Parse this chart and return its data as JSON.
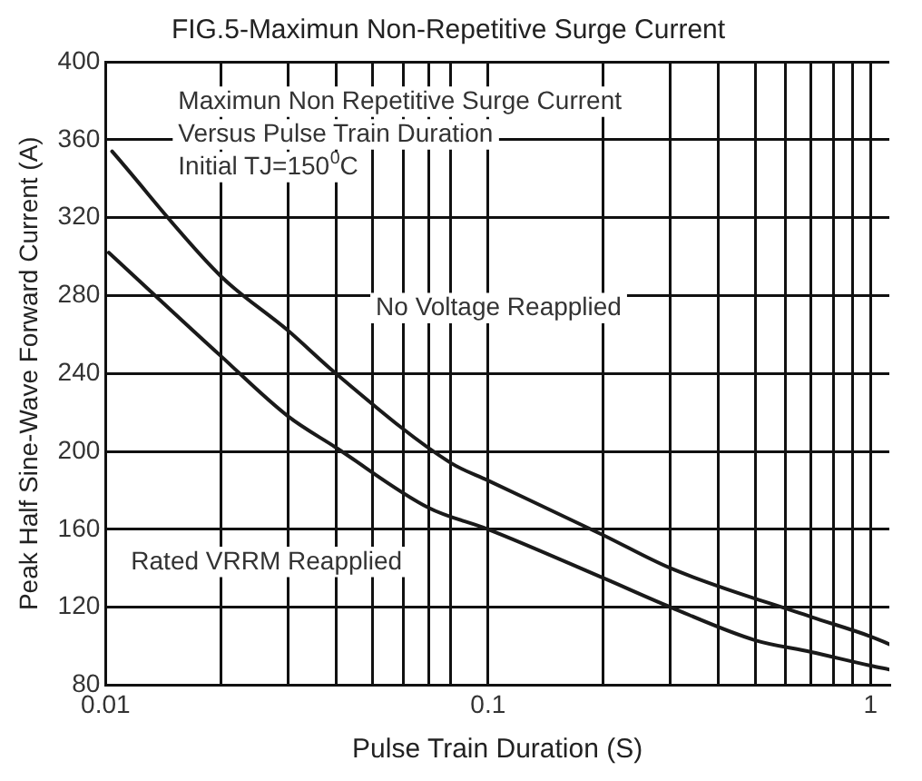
{
  "chart_data": {
    "type": "line",
    "title": "FIG.5-Maximun Non-Repetitive Surge Current",
    "xlabel": "Pulse Train Duration (S)",
    "ylabel": "Peak Half Sine-Wave Forward Current (A)",
    "log": "x",
    "grid": true,
    "legend": false,
    "marker": "none",
    "line_style": "solid",
    "xlim": [
      0.01,
      1.12
    ],
    "ylim": [
      80,
      400
    ],
    "xticks": [
      0.01,
      {
        "value": 0.02,
        "label": null
      },
      {
        "value": 0.03,
        "label": null
      },
      {
        "value": 0.04,
        "label": null
      },
      {
        "value": 0.05,
        "label": null
      },
      {
        "value": 0.06,
        "label": null
      },
      {
        "value": 0.07,
        "label": null
      },
      {
        "value": 0.08,
        "label": null
      },
      0.1,
      {
        "value": 0.2,
        "label": null
      },
      {
        "value": 0.3,
        "label": null
      },
      {
        "value": 0.4,
        "label": null
      },
      {
        "value": 0.5,
        "label": null
      },
      {
        "value": 0.6,
        "label": null
      },
      {
        "value": 0.7,
        "label": null
      },
      {
        "value": 0.8,
        "label": null
      },
      {
        "value": 0.9,
        "label": null
      },
      1
    ],
    "yticks": [
      80,
      120,
      160,
      200,
      240,
      280,
      320,
      360,
      400
    ],
    "series": [
      {
        "name": "No Voltage Reapplied",
        "color": "#1a1a1a",
        "x": [
          0.0104,
          0.02,
          0.03,
          0.04,
          0.08,
          0.1,
          0.2,
          0.3,
          0.7,
          1,
          1.12
        ],
        "values": [
          354,
          290,
          262,
          240,
          194,
          185,
          157,
          140,
          115,
          105,
          101
        ]
      },
      {
        "name": "Rated VRRM Reapplied",
        "color": "#1a1a1a",
        "x": [
          0.0102,
          0.02,
          0.03,
          0.04,
          0.07,
          0.1,
          0.2,
          0.3,
          0.5,
          0.7,
          1,
          1.12
        ],
        "values": [
          302,
          249,
          218,
          202,
          171,
          160,
          135,
          120,
          103,
          97,
          90,
          88
        ]
      }
    ],
    "annotations": [
      "Maximun Non Repetitive Surge Current",
      "Versus Pulse Train Duration",
      "Initial TJ=150$^{0}$C"
    ]
  }
}
